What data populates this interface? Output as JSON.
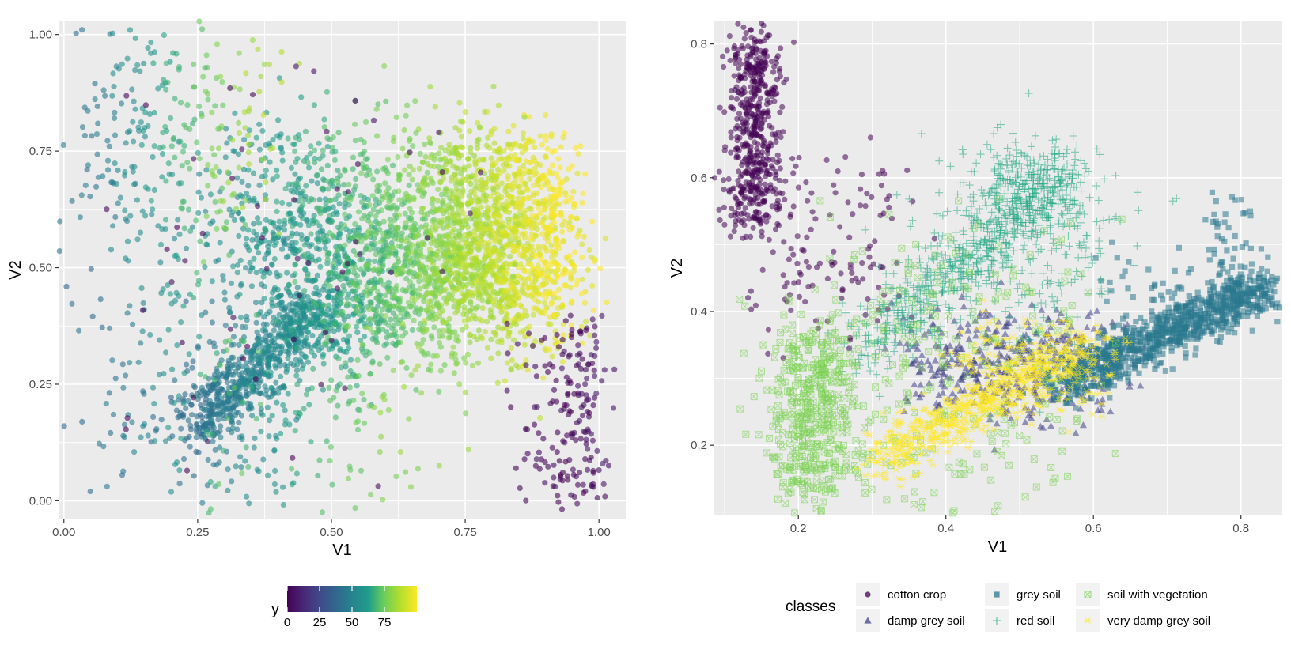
{
  "chart_data": [
    {
      "type": "scatter",
      "xlabel": "V1",
      "ylabel": "V2",
      "xlim": [
        -0.01,
        1.05
      ],
      "ylim": [
        -0.04,
        1.03
      ],
      "xticks": [
        0.0,
        0.25,
        0.5,
        0.75,
        1.0
      ],
      "xtick_labels": [
        "0.00",
        "0.25",
        "0.50",
        "0.75",
        "1.00"
      ],
      "yticks": [
        0.0,
        0.25,
        0.5,
        0.75,
        1.0
      ],
      "ytick_labels": [
        "0.00",
        "0.25",
        "0.50",
        "0.75",
        "1.00"
      ],
      "grid": true,
      "point_alpha": 0.6,
      "color_scale": {
        "title": "y",
        "palette": "viridis",
        "range": [
          0,
          100
        ],
        "breaks": [
          0,
          25,
          50,
          75
        ],
        "break_labels": [
          "0",
          "25",
          "50",
          "75"
        ],
        "legend_position": "bottom",
        "stops": [
          "#440154",
          "#482777",
          "#3f4a8a",
          "#31678e",
          "#26838f",
          "#1f9d8a",
          "#6cce5a",
          "#b6de2b",
          "#fee825"
        ]
      },
      "clusters": [
        {
          "n": 650,
          "x": [
            0.25,
            0.48
          ],
          "y": [
            0.16,
            0.42
          ],
          "diagonal": true,
          "spread": 0.03,
          "value": [
            42,
            58
          ]
        },
        {
          "n": 1400,
          "x": [
            0.42,
            0.92
          ],
          "y": [
            0.34,
            0.62
          ],
          "spread": 0.06,
          "value": [
            55,
            95
          ]
        },
        {
          "n": 900,
          "x": [
            0.7,
            0.93
          ],
          "y": [
            0.42,
            0.77
          ],
          "spread": 0.03,
          "value": [
            82,
            100
          ]
        },
        {
          "n": 650,
          "x": [
            0.3,
            0.75
          ],
          "y": [
            0.45,
            0.78
          ],
          "spread": 0.07,
          "value": [
            55,
            85
          ]
        },
        {
          "n": 260,
          "x": [
            0.22,
            0.6
          ],
          "y": [
            0.05,
            0.4
          ],
          "spread": 0.08,
          "value": [
            40,
            80
          ]
        },
        {
          "n": 260,
          "x": [
            0.05,
            0.35
          ],
          "y": [
            0.6,
            0.97
          ],
          "spread": 0.06,
          "value": [
            45,
            85
          ]
        },
        {
          "n": 140,
          "x": [
            0.05,
            0.3
          ],
          "y": [
            0.0,
            0.6
          ],
          "spread": 0.08,
          "value": [
            40,
            70
          ]
        },
        {
          "n": 130,
          "x": [
            0.93,
            1.0
          ],
          "y": [
            0.0,
            0.4
          ],
          "spread": 0.02,
          "value": [
            0,
            5
          ]
        },
        {
          "n": 55,
          "x": [
            0.85,
            0.96
          ],
          "y": [
            0.0,
            0.35
          ],
          "spread": 0.03,
          "value": [
            0,
            5
          ]
        },
        {
          "n": 60,
          "x": [
            0.08,
            0.8
          ],
          "y": [
            0.02,
            0.95
          ],
          "spread": 0.0,
          "value": [
            0,
            5
          ]
        }
      ]
    },
    {
      "type": "scatter",
      "xlabel": "V1",
      "ylabel": "V2",
      "xlim": [
        0.085,
        0.855
      ],
      "ylim": [
        0.095,
        0.835
      ],
      "xticks": [
        0.2,
        0.4,
        0.6,
        0.8
      ],
      "xtick_labels": [
        "0.2",
        "0.4",
        "0.6",
        "0.8"
      ],
      "yticks": [
        0.2,
        0.4,
        0.6,
        0.8
      ],
      "ytick_labels": [
        "0.2",
        "0.4",
        "0.6",
        "0.8"
      ],
      "grid": true,
      "point_alpha": 0.55,
      "legend": {
        "title": "classes",
        "position": "bottom",
        "columns": 3
      },
      "series": [
        {
          "name": "cotton crop",
          "shape": "circle",
          "color": "#440154",
          "clusters": [
            {
              "n": 520,
              "x": [
                0.12,
                0.16
              ],
              "y": [
                0.52,
                0.81
              ],
              "spread": 0.015
            },
            {
              "n": 130,
              "x": [
                0.15,
                0.32
              ],
              "y": [
                0.36,
                0.64
              ],
              "spread": 0.03
            }
          ]
        },
        {
          "name": "damp grey soil",
          "shape": "triangle",
          "color": "#414487",
          "clusters": [
            {
              "n": 420,
              "x": [
                0.36,
                0.62
              ],
              "y": [
                0.26,
                0.38
              ],
              "spread": 0.025
            }
          ]
        },
        {
          "name": "grey soil",
          "shape": "square",
          "color": "#2a788e",
          "clusters": [
            {
              "n": 900,
              "x": [
                0.55,
                0.84
              ],
              "y": [
                0.29,
                0.44
              ],
              "diagonal": true,
              "spread": 0.018
            },
            {
              "n": 60,
              "x": [
                0.76,
                0.81
              ],
              "y": [
                0.42,
                0.57
              ],
              "spread": 0.01
            },
            {
              "n": 40,
              "x": [
                0.62,
                0.75
              ],
              "y": [
                0.38,
                0.48
              ],
              "spread": 0.02
            }
          ]
        },
        {
          "name": "red soil",
          "shape": "plus",
          "color": "#22a884",
          "clusters": [
            {
              "n": 350,
              "x": [
                0.47,
                0.57
              ],
              "y": [
                0.53,
                0.63
              ],
              "spread": 0.02
            },
            {
              "n": 450,
              "x": [
                0.29,
                0.5
              ],
              "y": [
                0.34,
                0.55
              ],
              "diagonal": true,
              "spread": 0.025
            },
            {
              "n": 250,
              "x": [
                0.38,
                0.62
              ],
              "y": [
                0.4,
                0.6
              ],
              "spread": 0.05
            }
          ]
        },
        {
          "name": "soil with vegetation",
          "shape": "square-x",
          "color": "#7ad151",
          "clusters": [
            {
              "n": 420,
              "x": [
                0.19,
                0.25
              ],
              "y": [
                0.13,
                0.36
              ],
              "spread": 0.025
            },
            {
              "n": 300,
              "x": [
                0.22,
                0.55
              ],
              "y": [
                0.15,
                0.48
              ],
              "spread": 0.06
            }
          ]
        },
        {
          "name": "very damp grey soil",
          "shape": "asterisk",
          "color": "#fde725",
          "clusters": [
            {
              "n": 600,
              "x": [
                0.31,
                0.58
              ],
              "y": [
                0.18,
                0.34
              ],
              "diagonal": true,
              "spread": 0.02
            },
            {
              "n": 200,
              "x": [
                0.42,
                0.62
              ],
              "y": [
                0.26,
                0.37
              ],
              "spread": 0.02
            }
          ]
        }
      ]
    }
  ]
}
